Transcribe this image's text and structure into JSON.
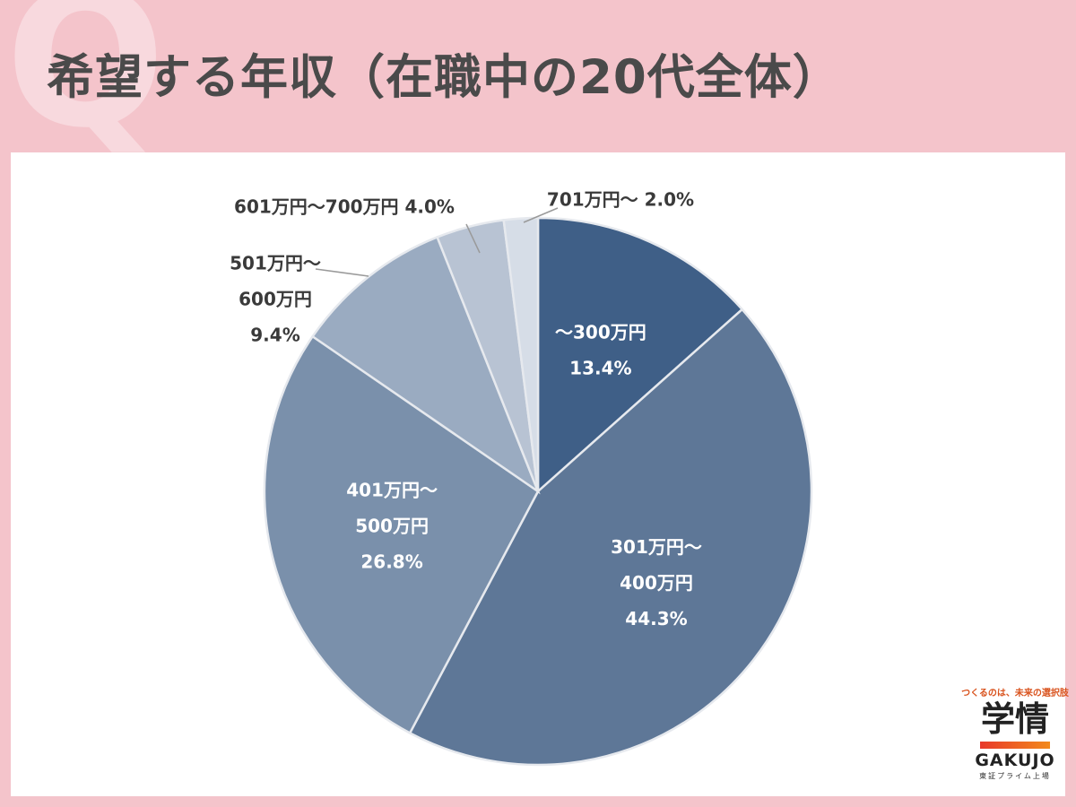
{
  "title": "希望する年収（在職中の20代全体）",
  "title_mark": "Q",
  "logo": {
    "tagline": "つくるのは、未来の選択肢",
    "kanji": "学情",
    "roman": "GAKUJO",
    "sub": "東証プライム上場"
  },
  "chart_data": {
    "type": "pie",
    "start_angle_deg": 0,
    "direction": "clockwise",
    "slices": [
      {
        "lines": [
          "～300万円",
          "13.4%"
        ],
        "value": 13.4,
        "color": "#3f5f87",
        "label_color": "#ffffff",
        "label_position": "inside"
      },
      {
        "lines": [
          "301万円～",
          "400万円",
          "44.3%"
        ],
        "value": 44.3,
        "color": "#5e7797",
        "label_color": "#ffffff",
        "label_position": "inside"
      },
      {
        "lines": [
          "401万円～",
          "500万円",
          "26.8%"
        ],
        "value": 26.8,
        "color": "#7a90ab",
        "label_color": "#ffffff",
        "label_position": "inside"
      },
      {
        "lines": [
          "501万円～",
          "600万円",
          "9.4%"
        ],
        "value": 9.4,
        "color": "#9aabc1",
        "label_color": "#3a3a3a",
        "label_position": "outside"
      },
      {
        "lines": [
          "601万円～700万円 4.0%"
        ],
        "value": 4.0,
        "color": "#b8c3d3",
        "label_color": "#3a3a3a",
        "label_position": "outside"
      },
      {
        "lines": [
          "701万円～ 2.0%"
        ],
        "value": 2.0,
        "color": "#d6dde7",
        "label_color": "#3a3a3a",
        "label_position": "outside"
      }
    ]
  }
}
